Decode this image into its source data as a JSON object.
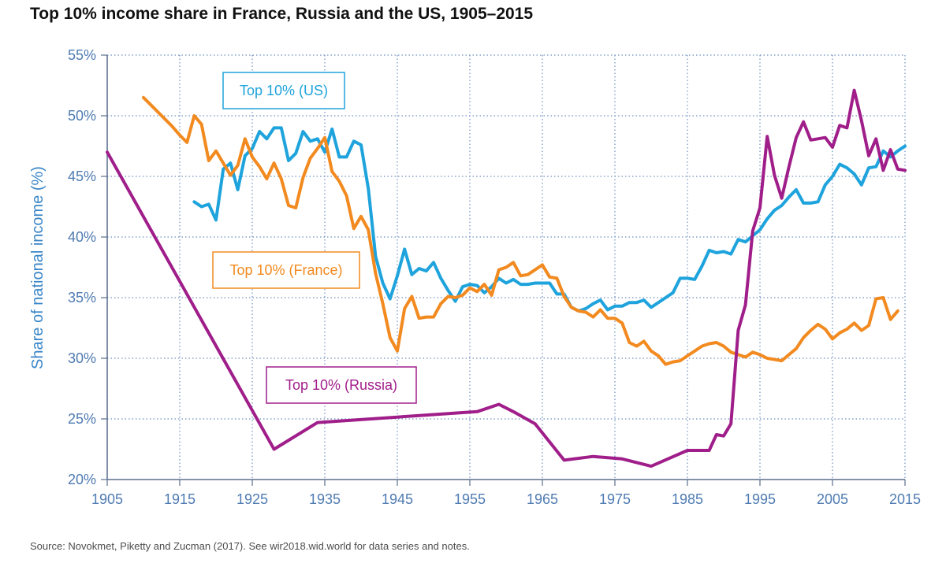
{
  "title": "Top 10% income share in France, Russia and the US, 1905–2015",
  "source": "Source: Novokmet, Piketty and Zucman (2017). See wir2018.wid.world for data series and notes.",
  "chart_data": {
    "type": "line",
    "title": "Top 10% income share in France, Russia and the US, 1905–2015",
    "xlabel": "",
    "ylabel": "Share of national income (%)",
    "xlim": [
      1905,
      2015
    ],
    "ylim": [
      20,
      55
    ],
    "x_ticks": [
      1905,
      1915,
      1925,
      1935,
      1945,
      1955,
      1965,
      1975,
      1985,
      1995,
      2005,
      2015
    ],
    "y_ticks": [
      20,
      25,
      30,
      35,
      40,
      45,
      50,
      55
    ],
    "y_tick_labels": [
      "20%",
      "25%",
      "30%",
      "35%",
      "40%",
      "45%",
      "50%",
      "55%"
    ],
    "grid": true,
    "series": [
      {
        "name": "Top 10% (US)",
        "color": "#1ea3dc",
        "points": [
          [
            1917,
            42.9
          ],
          [
            1918,
            42.5
          ],
          [
            1919,
            42.7
          ],
          [
            1920,
            41.4
          ],
          [
            1921,
            45.6
          ],
          [
            1922,
            46.1
          ],
          [
            1923,
            43.9
          ],
          [
            1924,
            46.7
          ],
          [
            1925,
            47.3
          ],
          [
            1926,
            48.7
          ],
          [
            1927,
            48.1
          ],
          [
            1928,
            49.0
          ],
          [
            1929,
            49.0
          ],
          [
            1930,
            46.3
          ],
          [
            1931,
            46.9
          ],
          [
            1932,
            48.7
          ],
          [
            1933,
            47.9
          ],
          [
            1934,
            48.1
          ],
          [
            1935,
            47.0
          ],
          [
            1936,
            48.9
          ],
          [
            1937,
            46.6
          ],
          [
            1938,
            46.6
          ],
          [
            1939,
            47.9
          ],
          [
            1940,
            47.6
          ],
          [
            1941,
            44.0
          ],
          [
            1942,
            38.4
          ],
          [
            1943,
            36.2
          ],
          [
            1944,
            34.9
          ],
          [
            1945,
            36.8
          ],
          [
            1946,
            39.0
          ],
          [
            1947,
            36.9
          ],
          [
            1948,
            37.4
          ],
          [
            1949,
            37.2
          ],
          [
            1950,
            37.9
          ],
          [
            1951,
            36.6
          ],
          [
            1952,
            35.6
          ],
          [
            1953,
            34.7
          ],
          [
            1954,
            35.9
          ],
          [
            1955,
            36.1
          ],
          [
            1956,
            36.0
          ],
          [
            1957,
            35.4
          ],
          [
            1958,
            35.9
          ],
          [
            1959,
            36.6
          ],
          [
            1960,
            36.2
          ],
          [
            1961,
            36.5
          ],
          [
            1962,
            36.1
          ],
          [
            1963,
            36.1
          ],
          [
            1964,
            36.2
          ],
          [
            1965,
            36.2
          ],
          [
            1966,
            36.2
          ],
          [
            1967,
            35.3
          ],
          [
            1968,
            35.3
          ],
          [
            1969,
            34.2
          ],
          [
            1970,
            33.9
          ],
          [
            1971,
            34.1
          ],
          [
            1972,
            34.5
          ],
          [
            1973,
            34.8
          ],
          [
            1974,
            34.0
          ],
          [
            1975,
            34.3
          ],
          [
            1976,
            34.3
          ],
          [
            1977,
            34.6
          ],
          [
            1978,
            34.6
          ],
          [
            1979,
            34.8
          ],
          [
            1980,
            34.2
          ],
          [
            1981,
            34.6
          ],
          [
            1982,
            35.0
          ],
          [
            1983,
            35.4
          ],
          [
            1984,
            36.6
          ],
          [
            1985,
            36.6
          ],
          [
            1986,
            36.5
          ],
          [
            1987,
            37.6
          ],
          [
            1988,
            38.9
          ],
          [
            1989,
            38.7
          ],
          [
            1990,
            38.8
          ],
          [
            1991,
            38.6
          ],
          [
            1992,
            39.8
          ],
          [
            1993,
            39.6
          ],
          [
            1994,
            40.1
          ],
          [
            1995,
            40.6
          ],
          [
            1996,
            41.5
          ],
          [
            1997,
            42.2
          ],
          [
            1998,
            42.6
          ],
          [
            1999,
            43.3
          ],
          [
            2000,
            43.9
          ],
          [
            2001,
            42.8
          ],
          [
            2002,
            42.8
          ],
          [
            2003,
            42.9
          ],
          [
            2004,
            44.3
          ],
          [
            2005,
            45.0
          ],
          [
            2006,
            46.0
          ],
          [
            2007,
            45.7
          ],
          [
            2008,
            45.2
          ],
          [
            2009,
            44.3
          ],
          [
            2010,
            45.7
          ],
          [
            2011,
            45.8
          ],
          [
            2012,
            47.1
          ],
          [
            2013,
            46.6
          ],
          [
            2014,
            47.1
          ],
          [
            2015,
            47.5
          ]
        ]
      },
      {
        "name": "Top 10% (France)",
        "color": "#f28a20",
        "points": [
          [
            1910,
            51.5
          ],
          [
            1911,
            50.9
          ],
          [
            1912,
            50.3
          ],
          [
            1913,
            49.7
          ],
          [
            1914,
            49.1
          ],
          [
            1915,
            48.4
          ],
          [
            1916,
            47.8
          ],
          [
            1917,
            50.0
          ],
          [
            1918,
            49.3
          ],
          [
            1919,
            46.3
          ],
          [
            1920,
            47.1
          ],
          [
            1921,
            46.1
          ],
          [
            1922,
            45.1
          ],
          [
            1923,
            45.9
          ],
          [
            1924,
            48.1
          ],
          [
            1925,
            46.6
          ],
          [
            1926,
            45.8
          ],
          [
            1927,
            44.8
          ],
          [
            1928,
            46.1
          ],
          [
            1929,
            44.8
          ],
          [
            1930,
            42.6
          ],
          [
            1931,
            42.4
          ],
          [
            1932,
            44.9
          ],
          [
            1933,
            46.5
          ],
          [
            1934,
            47.3
          ],
          [
            1935,
            48.2
          ],
          [
            1936,
            45.4
          ],
          [
            1937,
            44.6
          ],
          [
            1938,
            43.4
          ],
          [
            1939,
            40.7
          ],
          [
            1940,
            41.7
          ],
          [
            1941,
            40.6
          ],
          [
            1942,
            37.0
          ],
          [
            1943,
            34.5
          ],
          [
            1944,
            31.7
          ],
          [
            1945,
            30.6
          ],
          [
            1946,
            34.1
          ],
          [
            1947,
            35.1
          ],
          [
            1948,
            33.3
          ],
          [
            1949,
            33.4
          ],
          [
            1950,
            33.4
          ],
          [
            1951,
            34.5
          ],
          [
            1952,
            35.1
          ],
          [
            1953,
            35.0
          ],
          [
            1954,
            35.2
          ],
          [
            1955,
            35.8
          ],
          [
            1956,
            35.5
          ],
          [
            1957,
            36.1
          ],
          [
            1958,
            35.2
          ],
          [
            1959,
            37.3
          ],
          [
            1960,
            37.5
          ],
          [
            1961,
            37.9
          ],
          [
            1962,
            36.8
          ],
          [
            1963,
            36.9
          ],
          [
            1964,
            37.3
          ],
          [
            1965,
            37.7
          ],
          [
            1966,
            36.7
          ],
          [
            1967,
            36.6
          ],
          [
            1968,
            35.1
          ],
          [
            1969,
            34.2
          ],
          [
            1970,
            33.9
          ],
          [
            1971,
            33.8
          ],
          [
            1972,
            33.4
          ],
          [
            1973,
            34.0
          ],
          [
            1974,
            33.3
          ],
          [
            1975,
            33.3
          ],
          [
            1976,
            32.9
          ],
          [
            1977,
            31.3
          ],
          [
            1978,
            31.0
          ],
          [
            1979,
            31.4
          ],
          [
            1980,
            30.6
          ],
          [
            1981,
            30.2
          ],
          [
            1982,
            29.5
          ],
          [
            1983,
            29.7
          ],
          [
            1984,
            29.8
          ],
          [
            1985,
            30.2
          ],
          [
            1986,
            30.6
          ],
          [
            1987,
            31.0
          ],
          [
            1988,
            31.2
          ],
          [
            1989,
            31.3
          ],
          [
            1990,
            31.0
          ],
          [
            1991,
            30.5
          ],
          [
            1992,
            30.3
          ],
          [
            1993,
            30.1
          ],
          [
            1994,
            30.5
          ],
          [
            1995,
            30.3
          ],
          [
            1996,
            30.0
          ],
          [
            1997,
            29.9
          ],
          [
            1998,
            29.8
          ],
          [
            1999,
            30.3
          ],
          [
            2000,
            30.8
          ],
          [
            2001,
            31.7
          ],
          [
            2002,
            32.3
          ],
          [
            2003,
            32.8
          ],
          [
            2004,
            32.4
          ],
          [
            2005,
            31.6
          ],
          [
            2006,
            32.1
          ],
          [
            2007,
            32.4
          ],
          [
            2008,
            32.9
          ],
          [
            2009,
            32.3
          ],
          [
            2010,
            32.7
          ],
          [
            2011,
            34.9
          ],
          [
            2012,
            35.0
          ],
          [
            2013,
            33.2
          ],
          [
            2014,
            33.9
          ]
        ]
      },
      {
        "name": "Top 10% (Russia)",
        "color": "#a01e8a",
        "points": [
          [
            1905,
            47.0
          ],
          [
            1928,
            22.5
          ],
          [
            1934,
            24.7
          ],
          [
            1956,
            25.6
          ],
          [
            1959,
            26.2
          ],
          [
            1961,
            25.6
          ],
          [
            1964,
            24.6
          ],
          [
            1968,
            21.6
          ],
          [
            1972,
            21.9
          ],
          [
            1976,
            21.7
          ],
          [
            1980,
            21.1
          ],
          [
            1985,
            22.4
          ],
          [
            1988,
            22.4
          ],
          [
            1989,
            23.7
          ],
          [
            1990,
            23.6
          ],
          [
            1991,
            24.6
          ],
          [
            1992,
            32.3
          ],
          [
            1993,
            34.4
          ],
          [
            1994,
            40.5
          ],
          [
            1995,
            42.4
          ],
          [
            1996,
            48.3
          ],
          [
            1997,
            45.1
          ],
          [
            1998,
            43.2
          ],
          [
            1999,
            45.8
          ],
          [
            2000,
            48.2
          ],
          [
            2001,
            49.5
          ],
          [
            2002,
            48.0
          ],
          [
            2003,
            48.1
          ],
          [
            2004,
            48.2
          ],
          [
            2005,
            47.4
          ],
          [
            2006,
            49.2
          ],
          [
            2007,
            49.0
          ],
          [
            2008,
            52.1
          ],
          [
            2009,
            49.6
          ],
          [
            2010,
            46.7
          ],
          [
            2011,
            48.1
          ],
          [
            2012,
            45.5
          ],
          [
            2013,
            47.2
          ],
          [
            2014,
            45.6
          ],
          [
            2015,
            45.5
          ]
        ]
      }
    ],
    "annotations": [
      {
        "text": "Top 10% (US)",
        "series": "Top 10% (US)"
      },
      {
        "text": "Top 10% (France)",
        "series": "Top 10% (France)"
      },
      {
        "text": "Top 10% (Russia)",
        "series": "Top 10% (Russia)"
      }
    ]
  }
}
